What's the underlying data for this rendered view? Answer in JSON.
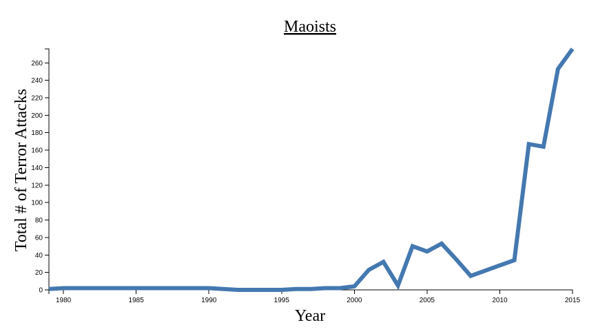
{
  "chart_data": {
    "type": "line",
    "title": "Maoists",
    "xlabel": "Year",
    "ylabel": "Total # of Terror Attacks",
    "xlim": [
      1979,
      2015
    ],
    "ylim": [
      0,
      276
    ],
    "x_ticks": [
      1980,
      1985,
      1990,
      1995,
      2000,
      2005,
      2010,
      2015
    ],
    "y_ticks": [
      0,
      20,
      40,
      60,
      80,
      100,
      120,
      140,
      160,
      180,
      200,
      220,
      240,
      260
    ],
    "grid": false,
    "color": "#4478b0",
    "x": [
      1979,
      1980,
      1981,
      1982,
      1983,
      1984,
      1985,
      1986,
      1987,
      1988,
      1989,
      1990,
      1991,
      1992,
      1993,
      1994,
      1995,
      1996,
      1997,
      1998,
      1999,
      2000,
      2001,
      2002,
      2003,
      2004,
      2005,
      2006,
      2007,
      2008,
      2009,
      2010,
      2011,
      2012,
      2013,
      2014,
      2015
    ],
    "values": [
      1,
      2,
      2,
      2,
      2,
      2,
      2,
      2,
      2,
      2,
      2,
      2,
      1,
      0,
      0,
      0,
      0,
      1,
      1,
      2,
      2,
      4,
      23,
      32,
      5,
      50,
      44,
      53,
      35,
      16,
      22,
      28,
      34,
      167,
      164,
      253,
      276
    ]
  }
}
